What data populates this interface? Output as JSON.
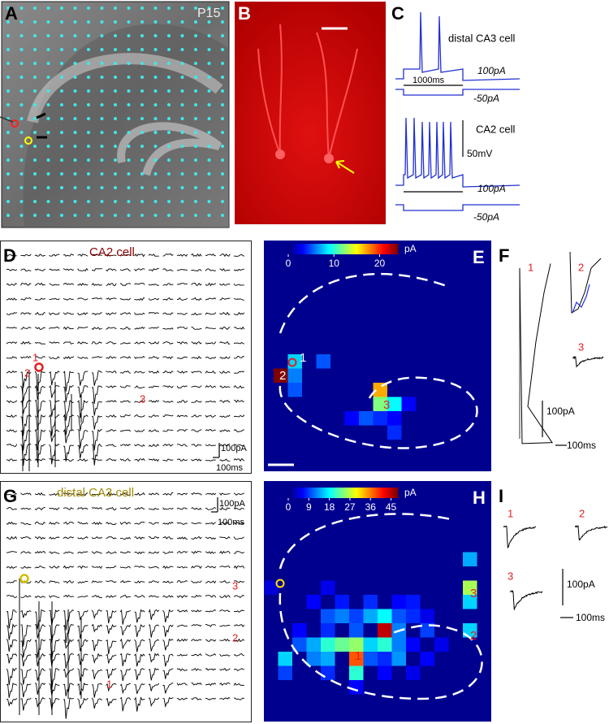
{
  "panels": {
    "A": {
      "label": "A",
      "age": "P15"
    },
    "B": {
      "label": "B"
    },
    "C": {
      "label": "C",
      "cell1": {
        "name": "distal CA3 cell",
        "duration": "1000ms",
        "step_high": "100pA",
        "step_low": "-50pA"
      },
      "cell2": {
        "name": "CA2 cell",
        "scale": "50mV",
        "step_high": "100pA",
        "step_low": "-50pA"
      }
    },
    "D": {
      "label": "D",
      "title": "CA2 cell",
      "sites": [
        "1",
        "2",
        "3"
      ],
      "scale_y": "100pA",
      "scale_x": "100ms"
    },
    "E": {
      "label": "E",
      "colorbar": {
        "lim": [
          0,
          24
        ],
        "ticks": [
          0,
          10,
          20
        ],
        "unit": "pA"
      },
      "sites": [
        "1",
        "2",
        "3"
      ],
      "cells": [
        {
          "row": 9,
          "col": 0,
          "value": 24
        },
        {
          "row": 8,
          "col": 1,
          "value": 8
        },
        {
          "row": 9,
          "col": 1,
          "value": 6
        },
        {
          "row": 10,
          "col": 1,
          "value": 5
        },
        {
          "row": 8,
          "col": 3,
          "value": 5
        },
        {
          "row": 10,
          "col": 7,
          "value": 17
        },
        {
          "row": 11,
          "col": 7,
          "value": 12
        },
        {
          "row": 11,
          "col": 8,
          "value": 9
        },
        {
          "row": 12,
          "col": 5,
          "value": 3
        },
        {
          "row": 12,
          "col": 6,
          "value": 5
        },
        {
          "row": 12,
          "col": 7,
          "value": 4
        },
        {
          "row": 12,
          "col": 8,
          "value": 3
        },
        {
          "row": 13,
          "col": 8,
          "value": 4
        },
        {
          "row": 11,
          "col": 9,
          "value": 3
        }
      ]
    },
    "F": {
      "label": "F",
      "sites": [
        "1",
        "2",
        "3"
      ],
      "scale_y": "100pA",
      "scale_x": "100ms"
    },
    "G": {
      "label": "G",
      "title": "distal CA3 cell",
      "sites": [
        "1",
        "2",
        "3"
      ],
      "scale_y": "100pA",
      "scale_x": "100ms"
    },
    "H": {
      "label": "H",
      "colorbar": {
        "lim": [
          0,
          48
        ],
        "ticks": [
          0,
          9,
          18,
          27,
          36,
          45
        ],
        "unit": "pA"
      },
      "sites": [
        "1",
        "2",
        "3"
      ],
      "cells": [
        {
          "row": 5,
          "col": 14,
          "value": 14
        },
        {
          "row": 7,
          "col": 14,
          "value": 26
        },
        {
          "row": 8,
          "col": 14,
          "value": 16
        },
        {
          "row": 10,
          "col": 14,
          "value": 16
        },
        {
          "row": 7,
          "col": 0,
          "value": 4
        },
        {
          "row": 7,
          "col": 4,
          "value": 5
        },
        {
          "row": 8,
          "col": 3,
          "value": 6
        },
        {
          "row": 8,
          "col": 5,
          "value": 7
        },
        {
          "row": 8,
          "col": 7,
          "value": 8
        },
        {
          "row": 8,
          "col": 9,
          "value": 6
        },
        {
          "row": 8,
          "col": 10,
          "value": 7
        },
        {
          "row": 9,
          "col": 4,
          "value": 10
        },
        {
          "row": 9,
          "col": 5,
          "value": 12
        },
        {
          "row": 9,
          "col": 6,
          "value": 9
        },
        {
          "row": 9,
          "col": 7,
          "value": 14
        },
        {
          "row": 9,
          "col": 8,
          "value": 18
        },
        {
          "row": 9,
          "col": 9,
          "value": 10
        },
        {
          "row": 9,
          "col": 10,
          "value": 8
        },
        {
          "row": 9,
          "col": 11,
          "value": 5
        },
        {
          "row": 10,
          "col": 2,
          "value": 6
        },
        {
          "row": 10,
          "col": 4,
          "value": 8
        },
        {
          "row": 10,
          "col": 6,
          "value": 10
        },
        {
          "row": 10,
          "col": 8,
          "value": 45
        },
        {
          "row": 10,
          "col": 9,
          "value": 12
        },
        {
          "row": 10,
          "col": 11,
          "value": 9
        },
        {
          "row": 11,
          "col": 2,
          "value": 10
        },
        {
          "row": 11,
          "col": 3,
          "value": 14
        },
        {
          "row": 11,
          "col": 4,
          "value": 20
        },
        {
          "row": 11,
          "col": 5,
          "value": 23
        },
        {
          "row": 11,
          "col": 6,
          "value": 25
        },
        {
          "row": 11,
          "col": 7,
          "value": 16
        },
        {
          "row": 11,
          "col": 8,
          "value": 20
        },
        {
          "row": 11,
          "col": 9,
          "value": 12
        },
        {
          "row": 11,
          "col": 10,
          "value": 6
        },
        {
          "row": 11,
          "col": 12,
          "value": 5
        },
        {
          "row": 12,
          "col": 1,
          "value": 16
        },
        {
          "row": 12,
          "col": 3,
          "value": 12
        },
        {
          "row": 12,
          "col": 4,
          "value": 14
        },
        {
          "row": 12,
          "col": 6,
          "value": 38
        },
        {
          "row": 12,
          "col": 7,
          "value": 10
        },
        {
          "row": 12,
          "col": 8,
          "value": 8
        },
        {
          "row": 12,
          "col": 9,
          "value": 13
        },
        {
          "row": 12,
          "col": 11,
          "value": 6
        },
        {
          "row": 13,
          "col": 1,
          "value": 9
        },
        {
          "row": 13,
          "col": 4,
          "value": 8
        },
        {
          "row": 13,
          "col": 6,
          "value": 20
        },
        {
          "row": 13,
          "col": 8,
          "value": 6
        },
        {
          "row": 13,
          "col": 10,
          "value": 5
        },
        {
          "row": 14,
          "col": 6,
          "value": 6
        }
      ]
    },
    "I": {
      "label": "I",
      "sites": [
        "1",
        "2",
        "3"
      ],
      "scale_y": "100pA",
      "scale_x": "100ms"
    }
  }
}
